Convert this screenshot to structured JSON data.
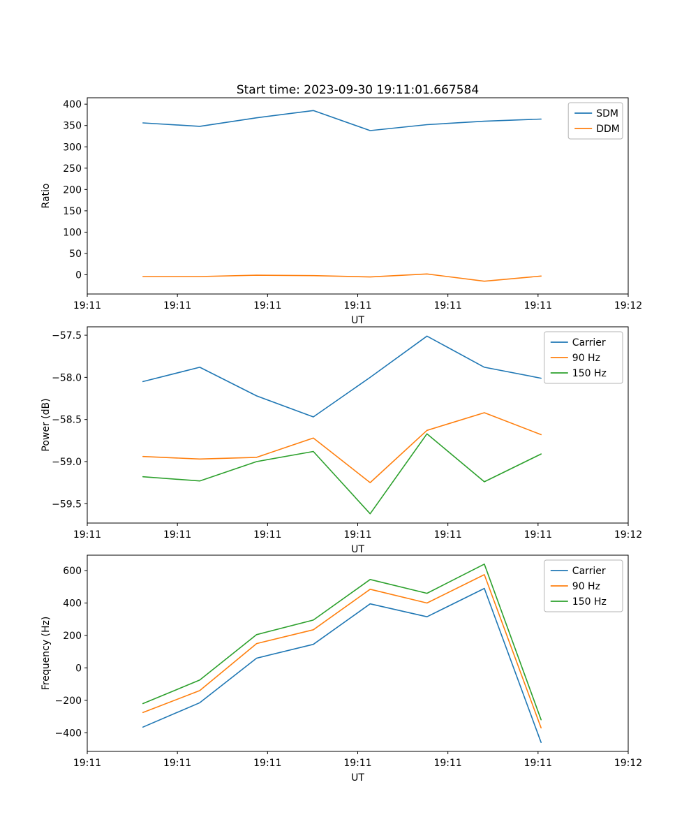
{
  "title": "Start time: 2023-09-30 19:11:01.667584",
  "palette": {
    "blue": "#1f77b4",
    "orange": "#ff7f0e",
    "green": "#2ca02c"
  },
  "chart_data": [
    {
      "type": "line",
      "name": "ratio",
      "xlabel": "UT",
      "ylabel": "Ratio",
      "xtick_labels": [
        "19:11",
        "19:11",
        "19:11",
        "19:11",
        "19:11",
        "19:11",
        "19:12"
      ],
      "ytick_values": [
        0,
        50,
        100,
        150,
        200,
        250,
        300,
        350,
        400
      ],
      "ytick_labels": [
        "0",
        "50",
        "100",
        "150",
        "200",
        "250",
        "300",
        "350",
        "400"
      ],
      "ylim": [
        -45,
        415
      ],
      "x": [
        0.103,
        0.208,
        0.313,
        0.418,
        0.523,
        0.628,
        0.734,
        0.839
      ],
      "series": [
        {
          "name": "SDM",
          "color": "#1f77b4",
          "values": [
            356,
            348,
            368,
            385,
            338,
            352,
            360,
            365
          ]
        },
        {
          "name": "DDM",
          "color": "#ff7f0e",
          "values": [
            -4,
            -4,
            -1,
            -2,
            -5,
            2,
            -15,
            -3
          ]
        }
      ],
      "legend_position": "upper right",
      "grid": false
    },
    {
      "type": "line",
      "name": "power",
      "xlabel": "UT",
      "ylabel": "Power (dB)",
      "xtick_labels": [
        "19:11",
        "19:11",
        "19:11",
        "19:11",
        "19:11",
        "19:11",
        "19:12"
      ],
      "ytick_values": [
        -57.5,
        -58.0,
        -58.5,
        -59.0,
        -59.5
      ],
      "ytick_labels": [
        "−57.5",
        "−58.0",
        "−58.5",
        "−59.0",
        "−59.5"
      ],
      "ylim": [
        -59.73,
        -57.4
      ],
      "x": [
        0.103,
        0.208,
        0.313,
        0.418,
        0.523,
        0.628,
        0.734,
        0.839
      ],
      "series": [
        {
          "name": "Carrier",
          "color": "#1f77b4",
          "values": [
            -58.05,
            -57.88,
            -58.22,
            -58.47,
            -58.0,
            -57.51,
            -57.88,
            -58.01
          ]
        },
        {
          "name": "90 Hz",
          "color": "#ff7f0e",
          "values": [
            -58.94,
            -58.97,
            -58.95,
            -58.72,
            -59.25,
            -58.63,
            -58.42,
            -58.68
          ]
        },
        {
          "name": "150 Hz",
          "color": "#2ca02c",
          "values": [
            -59.18,
            -59.23,
            -59.0,
            -58.88,
            -59.62,
            -58.67,
            -59.24,
            -58.91
          ]
        }
      ],
      "legend_position": "upper right",
      "grid": false
    },
    {
      "type": "line",
      "name": "frequency",
      "xlabel": "UT",
      "ylabel": "Frequency (Hz)",
      "xtick_labels": [
        "19:11",
        "19:11",
        "19:11",
        "19:11",
        "19:11",
        "19:11",
        "19:12"
      ],
      "ytick_values": [
        -400,
        -200,
        0,
        200,
        400,
        600
      ],
      "ytick_labels": [
        "−400",
        "−200",
        "0",
        "200",
        "400",
        "600"
      ],
      "ylim": [
        -515,
        695
      ],
      "x": [
        0.103,
        0.208,
        0.313,
        0.418,
        0.523,
        0.628,
        0.734,
        0.839
      ],
      "series": [
        {
          "name": "Carrier",
          "color": "#1f77b4",
          "values": [
            -365,
            -215,
            60,
            145,
            395,
            315,
            490,
            -460
          ]
        },
        {
          "name": "90 Hz",
          "color": "#ff7f0e",
          "values": [
            -275,
            -140,
            150,
            235,
            485,
            400,
            575,
            -370
          ]
        },
        {
          "name": "150 Hz",
          "color": "#2ca02c",
          "values": [
            -220,
            -75,
            205,
            295,
            545,
            460,
            640,
            -320
          ]
        }
      ],
      "legend_position": "upper right",
      "grid": false
    }
  ]
}
